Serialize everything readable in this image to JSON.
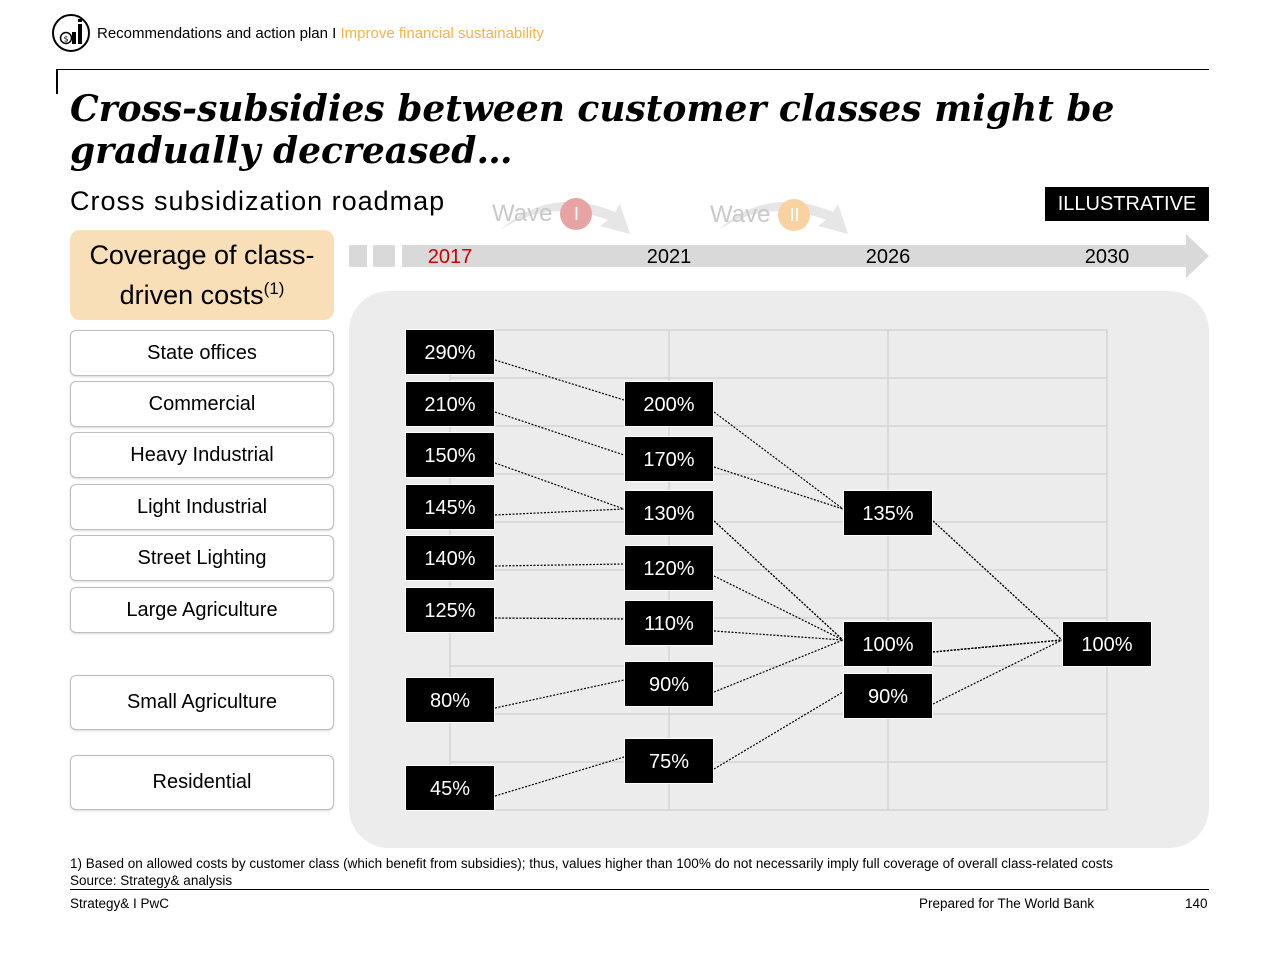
{
  "header": {
    "section": "Recommendations and action plan",
    "separator": "I",
    "subsection": "Improve financial sustainability",
    "accent_color": "#f2b34a"
  },
  "title": "Cross-subsidies between customer classes might be gradually decreased…",
  "subtitle": "Cross subsidization roadmap",
  "tag": "ILLUSTRATIVE",
  "waves": [
    {
      "label": "Wave",
      "numeral": "I",
      "color": "#e8a3a3"
    },
    {
      "label": "Wave",
      "numeral": "II",
      "color": "#f8d2a0"
    }
  ],
  "coverage": {
    "label": "Coverage of class-driven costs",
    "note": "(1)"
  },
  "chart_data": {
    "type": "line",
    "x": [
      "2017",
      "2021",
      "2026",
      "2030"
    ],
    "highlight_year": "2017",
    "highlight_color": "#cc0000",
    "series": [
      {
        "name": "State offices",
        "values": [
          290,
          200,
          135,
          100
        ],
        "labels": [
          "290%",
          "200%",
          "135%",
          "100%"
        ]
      },
      {
        "name": "Commercial",
        "values": [
          210,
          170,
          135,
          100
        ],
        "labels": [
          "210%",
          "170%",
          "135%",
          "100%"
        ]
      },
      {
        "name": "Heavy Industrial",
        "values": [
          150,
          130,
          100,
          100
        ],
        "labels": [
          "150%",
          "130%",
          "100%",
          "100%"
        ]
      },
      {
        "name": "Light Industrial",
        "values": [
          145,
          130,
          100,
          100
        ],
        "labels": [
          "145%",
          "130%",
          "100%",
          "100%"
        ]
      },
      {
        "name": "Street Lighting",
        "values": [
          140,
          120,
          100,
          100
        ],
        "labels": [
          "140%",
          "120%",
          "100%",
          "100%"
        ]
      },
      {
        "name": "Large Agriculture",
        "values": [
          125,
          110,
          100,
          100
        ],
        "labels": [
          "125%",
          "110%",
          "100%",
          "100%"
        ]
      },
      {
        "name": "Small Agriculture",
        "values": [
          80,
          90,
          100,
          100
        ],
        "labels": [
          "80%",
          "90%",
          "100%",
          "100%"
        ]
      },
      {
        "name": "Residential",
        "values": [
          45,
          75,
          90,
          100
        ],
        "labels": [
          "45%",
          "75%",
          "90%",
          "100%"
        ]
      }
    ]
  },
  "footnote": "1) Based on allowed costs by customer class (which benefit from subsidies); thus, values higher than 100% do not necessarily imply full coverage of overall class-related costs",
  "source": "Source: Strategy& analysis",
  "footer": {
    "left": "Strategy& I PwC",
    "center": "Prepared for The World Bank",
    "page": "140"
  }
}
